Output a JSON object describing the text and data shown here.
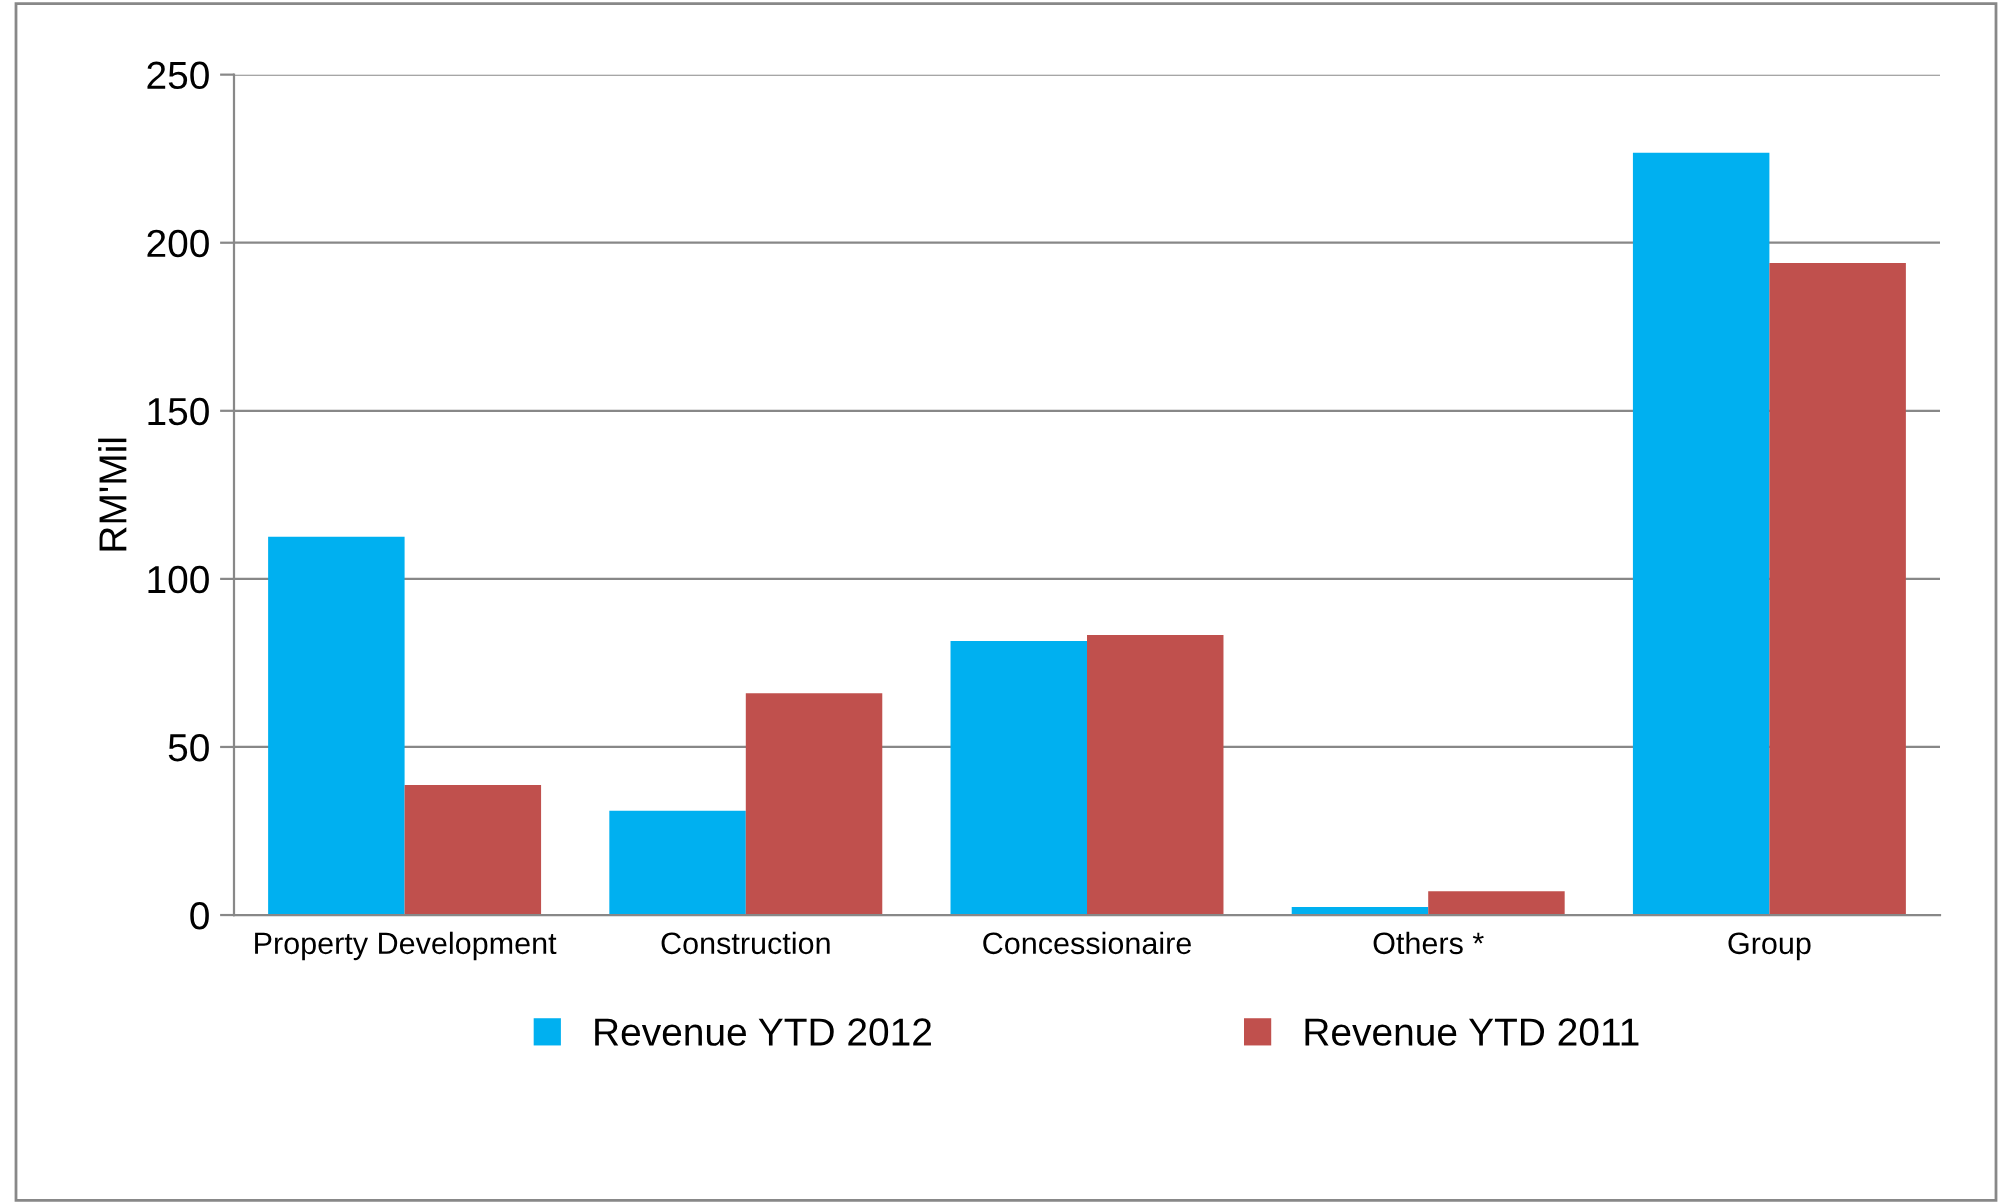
{
  "chart_data": {
    "type": "bar",
    "ylabel": "RM'Mil",
    "categories": [
      "Property Development",
      "Construction",
      "Concessionaire",
      "Others *",
      "Group"
    ],
    "series": [
      {
        "name": "Revenue YTD 2012",
        "color": "#00b0f0",
        "values": [
          112.5,
          31,
          81.5,
          2.4,
          226.8
        ]
      },
      {
        "name": "Revenue YTD 2011",
        "color": "#c0504d",
        "values": [
          38.7,
          66,
          83.3,
          7.1,
          194
        ]
      }
    ],
    "ylim": [
      0,
      250
    ],
    "yticks": [
      0,
      50,
      100,
      150,
      200,
      250
    ],
    "grid": "y",
    "legend": "bottom"
  }
}
